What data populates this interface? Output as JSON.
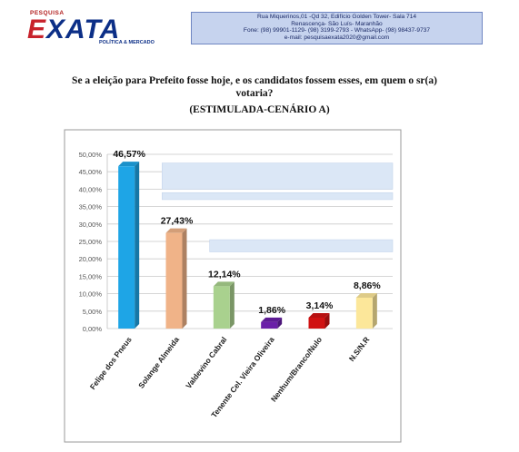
{
  "header": {
    "logo_small": "PESQUISA",
    "logo_big": "EXATA",
    "logo_tag": "POLÍTICA & MERCADO",
    "contact_lines": [
      "Rua Miquerinos,01 -Qd 32,  Edifício Golden Tower- Sala 714",
      "Renascença- São Luís- Maranhão",
      "Fone: (98) 99901-1129- (98) 3199-2793 - WhatsApp- (98) 98437-9737",
      "e-mail: pesquisaexata2020@gmail.com"
    ],
    "colors": {
      "logo_red": "#c8232c",
      "logo_blue": "#0c2f87",
      "contact_bg": "#c6d3ee"
    }
  },
  "question": {
    "line1": "Se a eleição para Prefeito fosse hoje, e os candidatos fossem esses, em quem o sr(a)",
    "line2": "votaria?",
    "scenario": "(ESTIMULADA-CENÁRIO A)"
  },
  "chart_data": {
    "type": "bar",
    "categories": [
      "Felipe dos Pneus",
      "Solange Almeida",
      "Valdevino Cabral",
      "Tenente Cel. Vieira Oliveira",
      "Nenhum/Branco/Nulo",
      "N.S/N.R"
    ],
    "values": [
      46.57,
      27.43,
      12.14,
      1.86,
      3.14,
      8.86
    ],
    "data_labels": [
      "46,57%",
      "27,43%",
      "12,14%",
      "1,86%",
      "3,14%",
      "8,86%"
    ],
    "colors": [
      "#1ea5e6",
      "#f0b388",
      "#a9d18e",
      "#6a1fa8",
      "#d01212",
      "#fce79a"
    ],
    "ylim": [
      0,
      50
    ],
    "yticks": [
      "0,00%",
      "5,00%",
      "10,00%",
      "15,00%",
      "20,00%",
      "25,00%",
      "30,00%",
      "35,00%",
      "40,00%",
      "45,00%",
      "50,00%"
    ],
    "grid": true,
    "style": "3d"
  }
}
